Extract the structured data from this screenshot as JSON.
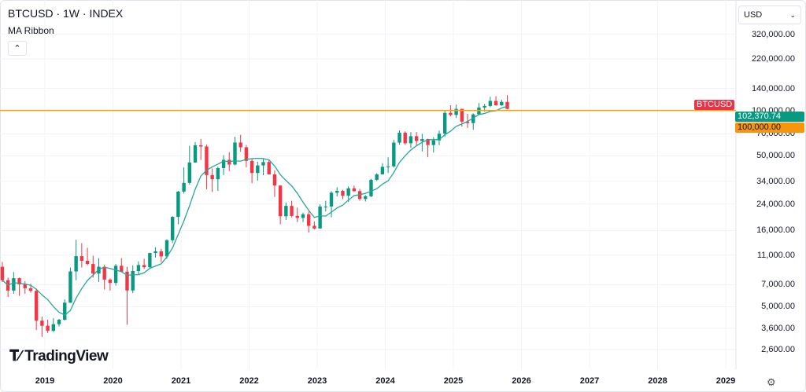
{
  "header": {
    "symbol_line": "BTCUSD · 1W · INDEX",
    "indicator": "MA Ribbon",
    "collapse_icon": "chevron-up-icon"
  },
  "currency_select": {
    "value": "USD",
    "icon": "chevron-down-icon"
  },
  "branding": {
    "logo": "TradingView"
  },
  "settings_icon": "gear-icon",
  "price_tags": {
    "symbol": "BTCUSD",
    "last_price": "102,370.74",
    "alert_line": "100,000.00"
  },
  "colors": {
    "up": "#089981",
    "down": "#f23645",
    "ma": "#26a69a",
    "hline": "#f7a600",
    "symbol_tag": "#e8344a",
    "last_tag": "#089981",
    "hline_tag": "#f7960a",
    "grid": "#f0f3fa"
  },
  "chart_data": {
    "type": "candlestick",
    "title": "BTCUSD · 1W · INDEX",
    "y_scale": "log",
    "ylim": [
      2300,
      400000
    ],
    "y_ticks": [
      "320,000.00",
      "220,000.00",
      "140,000.00",
      "100,000.00",
      "70,000.00",
      "50,000.00",
      "34,000.00",
      "24,000.00",
      "16,000.00",
      "11,000.00",
      "7,000.00",
      "5,000.00",
      "3,600.00",
      "2,600.00"
    ],
    "y_tick_values": [
      320000,
      220000,
      140000,
      100000,
      70000,
      50000,
      34000,
      24000,
      16000,
      11000,
      7000,
      5000,
      3600,
      2600
    ],
    "x_ticks": [
      "2019",
      "2020",
      "2021",
      "2022",
      "2023",
      "2024",
      "2025",
      "2026",
      "2027",
      "2028",
      "2029"
    ],
    "horizontal_line": 100000,
    "last_price": 102370.74,
    "grid": true,
    "ohlc": [
      [
        "2018-05",
        9200,
        9900,
        7300,
        7500
      ],
      [
        "2018-06",
        7500,
        7800,
        5800,
        6400
      ],
      [
        "2018-07",
        6400,
        8500,
        6100,
        7730
      ],
      [
        "2018-08",
        7730,
        7800,
        5900,
        7030
      ],
      [
        "2018-09",
        7030,
        7400,
        6100,
        6630
      ],
      [
        "2018-10",
        6630,
        7100,
        6200,
        6370
      ],
      [
        "2018-11",
        6370,
        6600,
        3500,
        4040
      ],
      [
        "2018-12",
        4040,
        4300,
        3150,
        3740
      ],
      [
        "2019-01",
        3740,
        4100,
        3350,
        3460
      ],
      [
        "2019-02",
        3460,
        4200,
        3400,
        3830
      ],
      [
        "2019-03",
        3830,
        4150,
        3700,
        4100
      ],
      [
        "2019-04",
        4100,
        5600,
        4050,
        5320
      ],
      [
        "2019-05",
        5320,
        9100,
        5300,
        8570
      ],
      [
        "2019-06",
        8570,
        13900,
        7500,
        10820
      ],
      [
        "2019-07",
        10820,
        13200,
        9100,
        10080
      ],
      [
        "2019-08",
        10080,
        12300,
        9400,
        9600
      ],
      [
        "2019-09",
        9600,
        10900,
        7800,
        8290
      ],
      [
        "2019-10",
        8290,
        10500,
        7300,
        9200
      ],
      [
        "2019-11",
        9200,
        9500,
        6500,
        7570
      ],
      [
        "2019-12",
        7570,
        7700,
        6400,
        7190
      ],
      [
        "2020-01",
        7190,
        9600,
        6900,
        9350
      ],
      [
        "2020-02",
        9350,
        10500,
        8500,
        8540
      ],
      [
        "2020-03",
        8540,
        9200,
        3800,
        6410
      ],
      [
        "2020-04",
        6410,
        9400,
        6150,
        8620
      ],
      [
        "2020-05",
        8620,
        10000,
        8100,
        9450
      ],
      [
        "2020-06",
        9450,
        10400,
        8900,
        9140
      ],
      [
        "2020-07",
        9140,
        11400,
        8900,
        11350
      ],
      [
        "2020-08",
        11350,
        12400,
        10600,
        11650
      ],
      [
        "2020-09",
        11650,
        12100,
        9900,
        10780
      ],
      [
        "2020-10",
        10780,
        14000,
        10400,
        13800
      ],
      [
        "2020-11",
        13800,
        19900,
        13200,
        19700
      ],
      [
        "2020-12",
        19700,
        29300,
        17600,
        29000
      ],
      [
        "2021-01",
        29000,
        42000,
        28100,
        33100
      ],
      [
        "2021-02",
        33100,
        58300,
        32300,
        45200
      ],
      [
        "2021-03",
        45200,
        61800,
        45000,
        58800
      ],
      [
        "2021-04",
        58800,
        64800,
        47000,
        57700
      ],
      [
        "2021-05",
        57700,
        59500,
        30000,
        37300
      ],
      [
        "2021-06",
        37300,
        41300,
        28800,
        35000
      ],
      [
        "2021-07",
        35000,
        42400,
        29300,
        41500
      ],
      [
        "2021-08",
        41500,
        50500,
        37300,
        47100
      ],
      [
        "2021-09",
        47100,
        52900,
        39600,
        43800
      ],
      [
        "2021-10",
        43800,
        67000,
        43300,
        61300
      ],
      [
        "2021-11",
        61300,
        69000,
        53300,
        57000
      ],
      [
        "2021-12",
        57000,
        59100,
        42000,
        46300
      ],
      [
        "2022-01",
        46300,
        47900,
        32900,
        38500
      ],
      [
        "2022-02",
        38500,
        45800,
        34300,
        43200
      ],
      [
        "2022-03",
        43200,
        48200,
        37200,
        45500
      ],
      [
        "2022-04",
        45500,
        47400,
        37600,
        37700
      ],
      [
        "2022-05",
        37700,
        40000,
        26700,
        31800
      ],
      [
        "2022-06",
        31800,
        31900,
        17600,
        19900
      ],
      [
        "2022-07",
        19900,
        24600,
        18800,
        23300
      ],
      [
        "2022-08",
        23300,
        25200,
        19600,
        20000
      ],
      [
        "2022-09",
        20000,
        22700,
        18200,
        19400
      ],
      [
        "2022-10",
        19400,
        21000,
        18200,
        20500
      ],
      [
        "2022-11",
        20500,
        21400,
        15500,
        17200
      ],
      [
        "2022-12",
        17200,
        18400,
        16300,
        16500
      ],
      [
        "2023-01",
        16500,
        23900,
        16500,
        23100
      ],
      [
        "2023-02",
        23100,
        25200,
        21400,
        23100
      ],
      [
        "2023-03",
        23100,
        29200,
        19600,
        28500
      ],
      [
        "2023-04",
        28500,
        31000,
        26900,
        29300
      ],
      [
        "2023-05",
        29300,
        29800,
        25800,
        27200
      ],
      [
        "2023-06",
        27200,
        31400,
        24800,
        30500
      ],
      [
        "2023-07",
        30500,
        31800,
        28900,
        29200
      ],
      [
        "2023-08",
        29200,
        30200,
        25200,
        25900
      ],
      [
        "2023-09",
        25900,
        27500,
        24900,
        27000
      ],
      [
        "2023-10",
        27000,
        35200,
        26600,
        34700
      ],
      [
        "2023-11",
        34700,
        38400,
        34100,
        37700
      ],
      [
        "2023-12",
        37700,
        44700,
        37600,
        42300
      ],
      [
        "2024-01",
        42300,
        48900,
        38500,
        42600
      ],
      [
        "2024-02",
        42600,
        63900,
        41900,
        61200
      ],
      [
        "2024-03",
        61200,
        73800,
        59300,
        71300
      ],
      [
        "2024-04",
        71300,
        72700,
        59200,
        60600
      ],
      [
        "2024-05",
        60600,
        71900,
        56500,
        67500
      ],
      [
        "2024-06",
        67500,
        71900,
        58400,
        62700
      ],
      [
        "2024-07",
        62700,
        70000,
        53500,
        64600
      ],
      [
        "2024-08",
        64600,
        65000,
        49000,
        59000
      ],
      [
        "2024-09",
        59000,
        66500,
        52600,
        63300
      ],
      [
        "2024-10",
        63300,
        73600,
        58900,
        70200
      ],
      [
        "2024-11",
        70200,
        99600,
        66800,
        96400
      ],
      [
        "2024-12",
        96400,
        108300,
        91300,
        93400
      ],
      [
        "2025-01",
        93400,
        109400,
        89200,
        102400
      ],
      [
        "2025-02",
        102400,
        102800,
        78200,
        84300
      ],
      [
        "2025-03",
        84300,
        95000,
        76600,
        82500
      ],
      [
        "2025-04",
        82500,
        95700,
        74500,
        94200
      ],
      [
        "2025-05",
        94200,
        111900,
        93300,
        104600
      ],
      [
        "2025-06",
        104600,
        110500,
        98200,
        107100
      ],
      [
        "2025-07",
        107100,
        123200,
        105100,
        115700
      ],
      [
        "2025-08",
        115700,
        124400,
        107300,
        108200
      ],
      [
        "2025-09",
        108200,
        117900,
        107300,
        114000
      ],
      [
        "2025-10",
        114000,
        126200,
        102000,
        102370.74
      ]
    ],
    "series": [
      {
        "name": "MA Ribbon",
        "kind": "moving-average"
      }
    ]
  }
}
